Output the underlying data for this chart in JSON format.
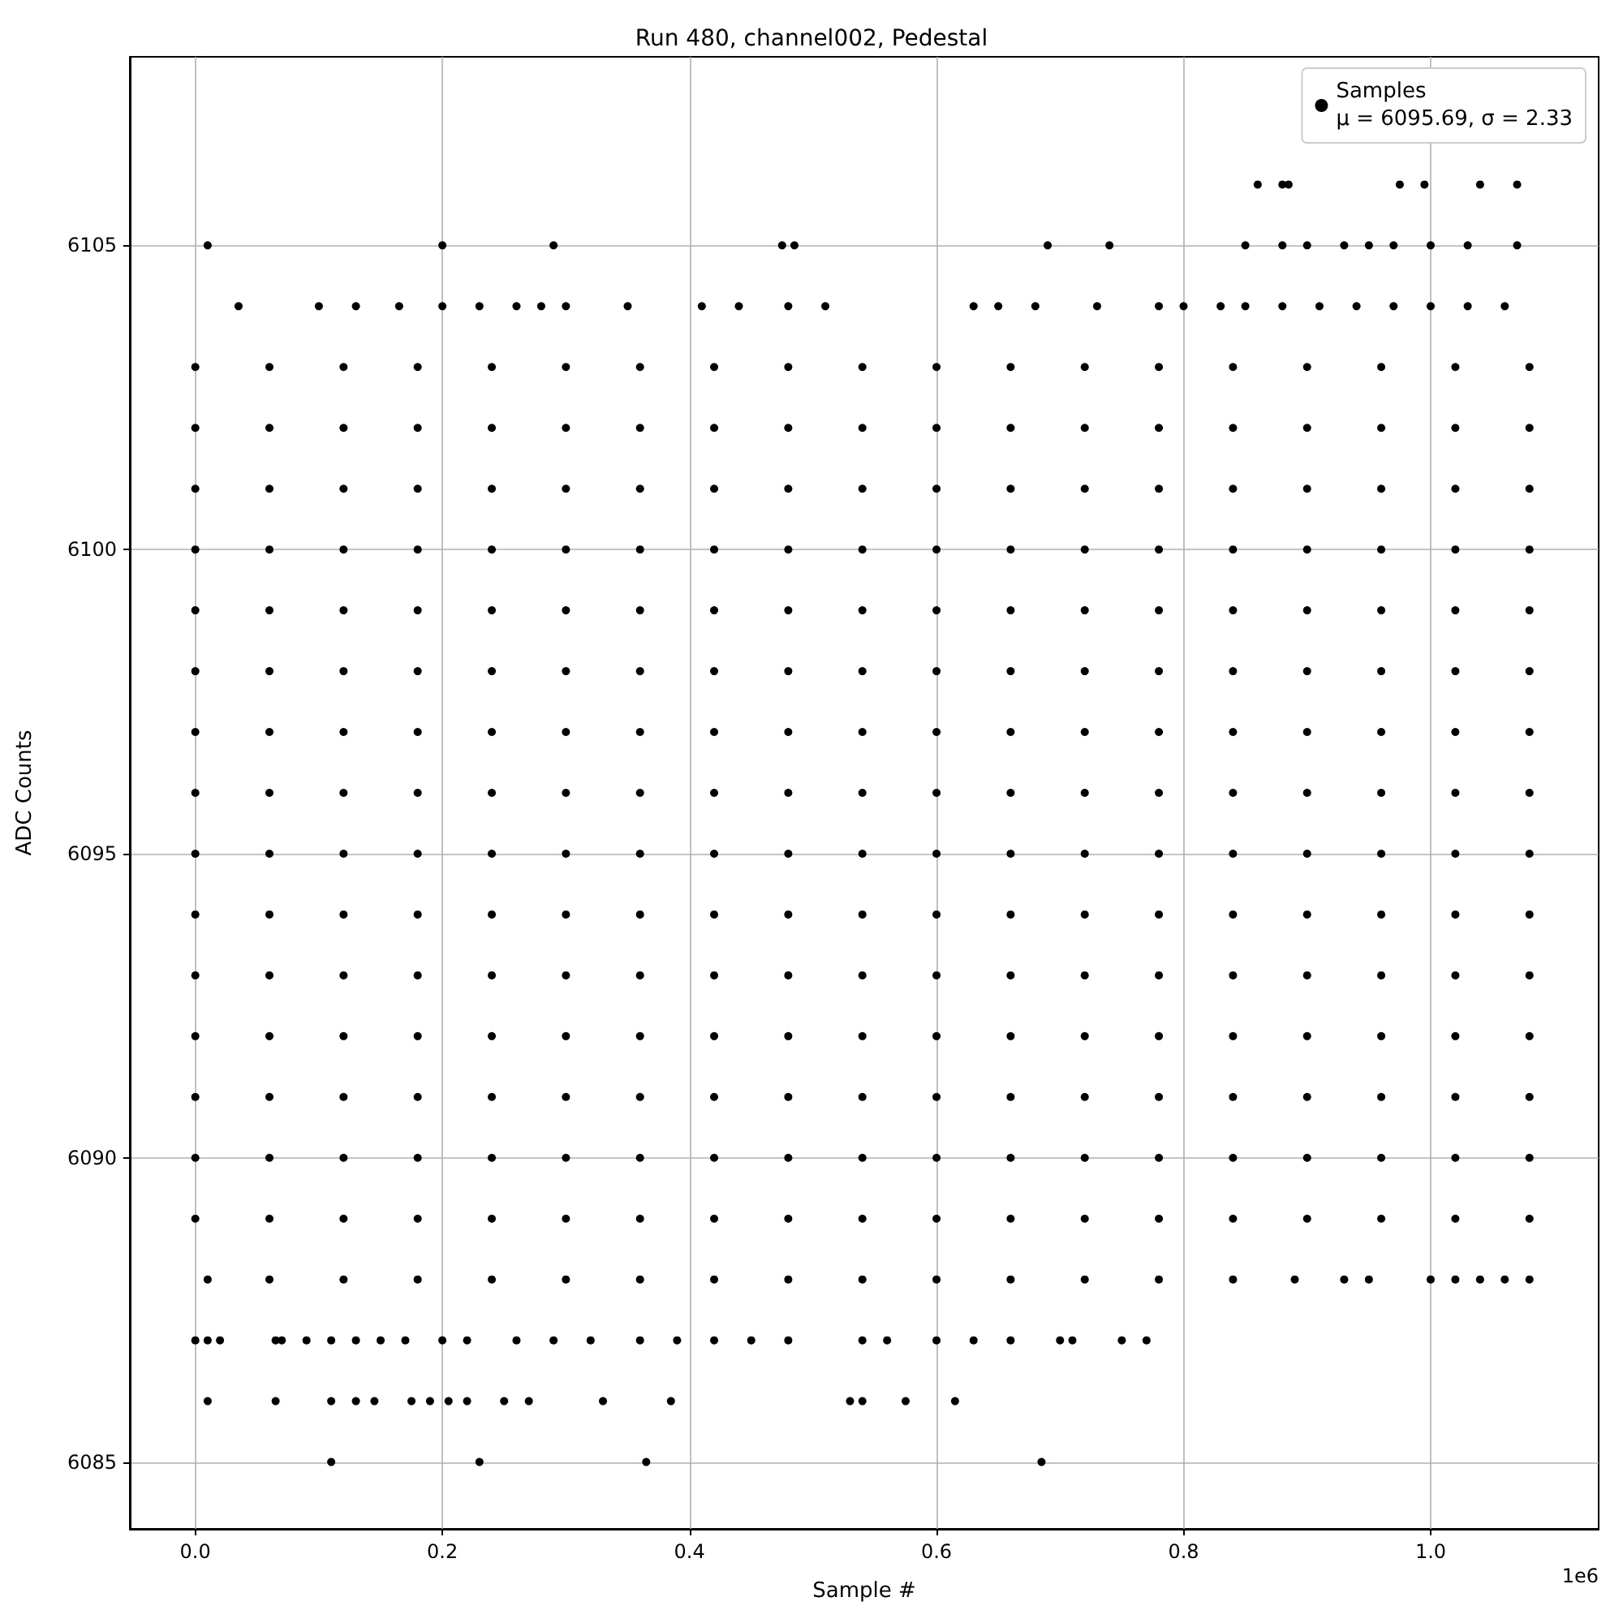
{
  "chart_data": {
    "type": "scatter",
    "title": "Run 480, channel002, Pedestal",
    "xlabel": "Sample #",
    "ylabel": "ADC Counts",
    "annotations": [
      "1e6"
    ],
    "xlim": [
      -0.053,
      1.136
    ],
    "xticks": [
      {
        "value": 0,
        "label": "0.0"
      },
      {
        "value": 0.2,
        "label": "0.2"
      },
      {
        "value": 0.4,
        "label": "0.4"
      },
      {
        "value": 0.6,
        "label": "0.6"
      },
      {
        "value": 0.8,
        "label": "0.8"
      },
      {
        "value": 1.0,
        "label": "1.0"
      }
    ],
    "ylim": [
      6083.9,
      6108.1
    ],
    "yticks": [
      6085,
      6090,
      6095,
      6100,
      6105
    ],
    "grid": true,
    "legend": "top right",
    "marker": "circle",
    "series": [
      {
        "name": "Samples\nμ = 6095.69, σ = 2.33",
        "color": "#000000",
        "x": [
          0.035,
          0.1,
          0.13,
          0.165,
          0.2,
          0.23,
          0.26,
          0.28,
          0.3,
          0.35,
          0.41,
          0.44,
          0.48,
          0.51,
          0.63,
          0.65,
          0.68,
          0.73,
          0.78,
          0.8,
          0.83,
          0.85,
          0.88,
          0.91,
          0.94,
          0.97,
          1.0,
          1.03,
          1.06
        ],
        "values": [
          6104,
          6104,
          6104,
          6104,
          6104,
          6104,
          6104,
          6104,
          6104,
          6104,
          6104,
          6104,
          6104,
          6104,
          6104,
          6104,
          6104,
          6104,
          6104,
          6104,
          6104,
          6104,
          6104,
          6104,
          6104,
          6104,
          6104,
          6104,
          6104
        ]
      },
      {
        "color": "#000000",
        "x": [
          0.01,
          0.2,
          0.29,
          0.475,
          0.485,
          0.69,
          0.74,
          0.85,
          0.88,
          0.9,
          0.93,
          0.95,
          0.97,
          1.0,
          1.03,
          1.07
        ],
        "values": [
          6105,
          6105,
          6105,
          6105,
          6105,
          6105,
          6105,
          6105,
          6105,
          6105,
          6105,
          6105,
          6105,
          6105,
          6105,
          6105
        ]
      },
      {
        "color": "#000000",
        "x": [
          0.86,
          0.88,
          0.885,
          0.975,
          0.995,
          1.04,
          1.07
        ],
        "values": [
          6106,
          6106,
          6106,
          6106,
          6106,
          6106,
          6106
        ]
      },
      {
        "color": "#000000",
        "x": [
          0,
          0.06,
          0.12,
          0.18,
          0.24,
          0.3,
          0.36,
          0.42,
          0.48,
          0.54,
          0.6,
          0.66,
          0.72,
          0.78,
          0.84,
          0.9,
          0.96,
          1.02,
          1.08
        ],
        "values": [
          6103,
          6103,
          6103,
          6103,
          6103,
          6103,
          6103,
          6103,
          6103,
          6103,
          6103,
          6103,
          6103,
          6103,
          6103,
          6103,
          6103,
          6103,
          6103
        ]
      },
      {
        "color": "#000000",
        "x": [
          0,
          0.06,
          0.12,
          0.18,
          0.24,
          0.3,
          0.36,
          0.42,
          0.48,
          0.54,
          0.6,
          0.66,
          0.72,
          0.78,
          0.84,
          0.9,
          0.96,
          1.02,
          1.08
        ],
        "values": [
          6102,
          6102,
          6102,
          6102,
          6102,
          6102,
          6102,
          6102,
          6102,
          6102,
          6102,
          6102,
          6102,
          6102,
          6102,
          6102,
          6102,
          6102,
          6102
        ]
      },
      {
        "color": "#000000",
        "x": [
          0,
          0.06,
          0.12,
          0.18,
          0.24,
          0.3,
          0.36,
          0.42,
          0.48,
          0.54,
          0.6,
          0.66,
          0.72,
          0.78,
          0.84,
          0.9,
          0.96,
          1.02,
          1.08
        ],
        "values": [
          6101,
          6101,
          6101,
          6101,
          6101,
          6101,
          6101,
          6101,
          6101,
          6101,
          6101,
          6101,
          6101,
          6101,
          6101,
          6101,
          6101,
          6101,
          6101
        ]
      },
      {
        "color": "#000000",
        "x": [
          0,
          0.06,
          0.12,
          0.18,
          0.24,
          0.3,
          0.36,
          0.42,
          0.48,
          0.54,
          0.6,
          0.66,
          0.72,
          0.78,
          0.84,
          0.9,
          0.96,
          1.02,
          1.08
        ],
        "values": [
          6100,
          6100,
          6100,
          6100,
          6100,
          6100,
          6100,
          6100,
          6100,
          6100,
          6100,
          6100,
          6100,
          6100,
          6100,
          6100,
          6100,
          6100,
          6100
        ]
      },
      {
        "color": "#000000",
        "x": [
          0,
          0.06,
          0.12,
          0.18,
          0.24,
          0.3,
          0.36,
          0.42,
          0.48,
          0.54,
          0.6,
          0.66,
          0.72,
          0.78,
          0.84,
          0.9,
          0.96,
          1.02,
          1.08
        ],
        "values": [
          6099,
          6099,
          6099,
          6099,
          6099,
          6099,
          6099,
          6099,
          6099,
          6099,
          6099,
          6099,
          6099,
          6099,
          6099,
          6099,
          6099,
          6099,
          6099
        ]
      },
      {
        "color": "#000000",
        "x": [
          0,
          0.06,
          0.12,
          0.18,
          0.24,
          0.3,
          0.36,
          0.42,
          0.48,
          0.54,
          0.6,
          0.66,
          0.72,
          0.78,
          0.84,
          0.9,
          0.96,
          1.02,
          1.08
        ],
        "values": [
          6098,
          6098,
          6098,
          6098,
          6098,
          6098,
          6098,
          6098,
          6098,
          6098,
          6098,
          6098,
          6098,
          6098,
          6098,
          6098,
          6098,
          6098,
          6098
        ]
      },
      {
        "color": "#000000",
        "x": [
          0,
          0.06,
          0.12,
          0.18,
          0.24,
          0.3,
          0.36,
          0.42,
          0.48,
          0.54,
          0.6,
          0.66,
          0.72,
          0.78,
          0.84,
          0.9,
          0.96,
          1.02,
          1.08
        ],
        "values": [
          6097,
          6097,
          6097,
          6097,
          6097,
          6097,
          6097,
          6097,
          6097,
          6097,
          6097,
          6097,
          6097,
          6097,
          6097,
          6097,
          6097,
          6097,
          6097
        ]
      },
      {
        "color": "#000000",
        "x": [
          0,
          0.06,
          0.12,
          0.18,
          0.24,
          0.3,
          0.36,
          0.42,
          0.48,
          0.54,
          0.6,
          0.66,
          0.72,
          0.78,
          0.84,
          0.9,
          0.96,
          1.02,
          1.08
        ],
        "values": [
          6096,
          6096,
          6096,
          6096,
          6096,
          6096,
          6096,
          6096,
          6096,
          6096,
          6096,
          6096,
          6096,
          6096,
          6096,
          6096,
          6096,
          6096,
          6096
        ]
      },
      {
        "color": "#000000",
        "x": [
          0,
          0.06,
          0.12,
          0.18,
          0.24,
          0.3,
          0.36,
          0.42,
          0.48,
          0.54,
          0.6,
          0.66,
          0.72,
          0.78,
          0.84,
          0.9,
          0.96,
          1.02,
          1.08
        ],
        "values": [
          6095,
          6095,
          6095,
          6095,
          6095,
          6095,
          6095,
          6095,
          6095,
          6095,
          6095,
          6095,
          6095,
          6095,
          6095,
          6095,
          6095,
          6095,
          6095
        ]
      },
      {
        "color": "#000000",
        "x": [
          0,
          0.06,
          0.12,
          0.18,
          0.24,
          0.3,
          0.36,
          0.42,
          0.48,
          0.54,
          0.6,
          0.66,
          0.72,
          0.78,
          0.84,
          0.9,
          0.96,
          1.02,
          1.08
        ],
        "values": [
          6094,
          6094,
          6094,
          6094,
          6094,
          6094,
          6094,
          6094,
          6094,
          6094,
          6094,
          6094,
          6094,
          6094,
          6094,
          6094,
          6094,
          6094,
          6094
        ]
      },
      {
        "color": "#000000",
        "x": [
          0,
          0.06,
          0.12,
          0.18,
          0.24,
          0.3,
          0.36,
          0.42,
          0.48,
          0.54,
          0.6,
          0.66,
          0.72,
          0.78,
          0.84,
          0.9,
          0.96,
          1.02,
          1.08
        ],
        "values": [
          6093,
          6093,
          6093,
          6093,
          6093,
          6093,
          6093,
          6093,
          6093,
          6093,
          6093,
          6093,
          6093,
          6093,
          6093,
          6093,
          6093,
          6093,
          6093
        ]
      },
      {
        "color": "#000000",
        "x": [
          0,
          0.06,
          0.12,
          0.18,
          0.24,
          0.3,
          0.36,
          0.42,
          0.48,
          0.54,
          0.6,
          0.66,
          0.72,
          0.78,
          0.84,
          0.9,
          0.96,
          1.02,
          1.08
        ],
        "values": [
          6092,
          6092,
          6092,
          6092,
          6092,
          6092,
          6092,
          6092,
          6092,
          6092,
          6092,
          6092,
          6092,
          6092,
          6092,
          6092,
          6092,
          6092,
          6092
        ]
      },
      {
        "color": "#000000",
        "x": [
          0,
          0.06,
          0.12,
          0.18,
          0.24,
          0.3,
          0.36,
          0.42,
          0.48,
          0.54,
          0.6,
          0.66,
          0.72,
          0.78,
          0.84,
          0.9,
          0.96,
          1.02,
          1.08
        ],
        "values": [
          6091,
          6091,
          6091,
          6091,
          6091,
          6091,
          6091,
          6091,
          6091,
          6091,
          6091,
          6091,
          6091,
          6091,
          6091,
          6091,
          6091,
          6091,
          6091
        ]
      },
      {
        "color": "#000000",
        "x": [
          0,
          0.06,
          0.12,
          0.18,
          0.24,
          0.3,
          0.36,
          0.42,
          0.48,
          0.54,
          0.6,
          0.66,
          0.72,
          0.78,
          0.84,
          0.9,
          0.96,
          1.02,
          1.08
        ],
        "values": [
          6090,
          6090,
          6090,
          6090,
          6090,
          6090,
          6090,
          6090,
          6090,
          6090,
          6090,
          6090,
          6090,
          6090,
          6090,
          6090,
          6090,
          6090,
          6090
        ]
      },
      {
        "color": "#000000",
        "x": [
          0,
          0.06,
          0.12,
          0.18,
          0.24,
          0.3,
          0.36,
          0.42,
          0.48,
          0.54,
          0.6,
          0.66,
          0.72,
          0.78,
          0.84,
          0.9,
          0.96,
          1.02,
          1.08
        ],
        "values": [
          6089,
          6089,
          6089,
          6089,
          6089,
          6089,
          6089,
          6089,
          6089,
          6089,
          6089,
          6089,
          6089,
          6089,
          6089,
          6089,
          6089,
          6089,
          6089
        ]
      },
      {
        "color": "#000000",
        "x": [
          0.01,
          0.06,
          0.12,
          0.18,
          0.24,
          0.3,
          0.36,
          0.42,
          0.48,
          0.54,
          0.6,
          0.66,
          0.72,
          0.78,
          0.84,
          0.89,
          0.93,
          0.95,
          1.0,
          1.02,
          1.04,
          1.06,
          1.08
        ],
        "values": [
          6088,
          6088,
          6088,
          6088,
          6088,
          6088,
          6088,
          6088,
          6088,
          6088,
          6088,
          6088,
          6088,
          6088,
          6088,
          6088,
          6088,
          6088,
          6088,
          6088,
          6088,
          6088,
          6088
        ]
      },
      {
        "color": "#000000",
        "x": [
          0,
          0.01,
          0.02,
          0.065,
          0.07,
          0.09,
          0.11,
          0.13,
          0.15,
          0.17,
          0.2,
          0.22,
          0.26,
          0.29,
          0.32,
          0.36,
          0.39,
          0.42,
          0.45,
          0.48,
          0.54,
          0.56,
          0.6,
          0.63,
          0.66,
          0.7,
          0.71,
          0.75,
          0.77
        ],
        "values": [
          6087,
          6087,
          6087,
          6087,
          6087,
          6087,
          6087,
          6087,
          6087,
          6087,
          6087,
          6087,
          6087,
          6087,
          6087,
          6087,
          6087,
          6087,
          6087,
          6087,
          6087,
          6087,
          6087,
          6087,
          6087,
          6087,
          6087,
          6087,
          6087
        ]
      },
      {
        "color": "#000000",
        "x": [
          0.01,
          0.065,
          0.11,
          0.13,
          0.145,
          0.175,
          0.19,
          0.205,
          0.22,
          0.25,
          0.27,
          0.33,
          0.385,
          0.53,
          0.54,
          0.575,
          0.615
        ],
        "values": [
          6086,
          6086,
          6086,
          6086,
          6086,
          6086,
          6086,
          6086,
          6086,
          6086,
          6086,
          6086,
          6086,
          6086,
          6086,
          6086,
          6086
        ]
      },
      {
        "color": "#000000",
        "x": [
          0.11,
          0.23,
          0.365,
          0.685
        ],
        "values": [
          6085,
          6085,
          6085,
          6085
        ]
      }
    ]
  }
}
